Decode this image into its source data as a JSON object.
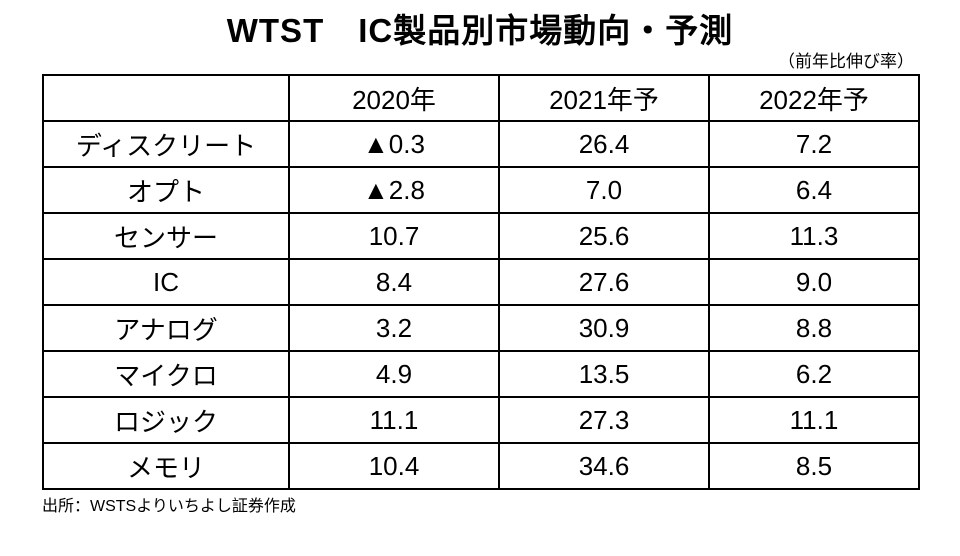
{
  "title": "WTST　IC製品別市場動向・予測",
  "subtitle": "（前年比伸び率）",
  "source": "出所：WSTSよりいちよし証券作成",
  "chart_data": {
    "type": "table",
    "title": "WTST　IC製品別市場動向・予測",
    "unit_note": "（前年比伸び率）",
    "negative_marker": "▲",
    "columns": [
      "",
      "2020年",
      "2021年予",
      "2022年予"
    ],
    "rows": [
      {
        "label": "ディスクリート",
        "values": [
          "▲0.3",
          "26.4",
          "7.2"
        ]
      },
      {
        "label": "オプト",
        "values": [
          "▲2.8",
          "7.0",
          "6.4"
        ]
      },
      {
        "label": "センサー",
        "values": [
          "10.7",
          "25.6",
          "11.3"
        ]
      },
      {
        "label": "IC",
        "values": [
          "8.4",
          "27.6",
          "9.0"
        ]
      },
      {
        "label": "アナログ",
        "values": [
          "3.2",
          "30.9",
          "8.8"
        ]
      },
      {
        "label": "マイクロ",
        "values": [
          "4.9",
          "13.5",
          "6.2"
        ]
      },
      {
        "label": "ロジック",
        "values": [
          "11.1",
          "27.3",
          "11.1"
        ]
      },
      {
        "label": "メモリ",
        "values": [
          "10.4",
          "34.6",
          "8.5"
        ]
      }
    ],
    "numeric_rows": [
      {
        "label": "ディスクリート",
        "values": [
          -0.3,
          26.4,
          7.2
        ]
      },
      {
        "label": "オプト",
        "values": [
          -2.8,
          7.0,
          6.4
        ]
      },
      {
        "label": "センサー",
        "values": [
          10.7,
          25.6,
          11.3
        ]
      },
      {
        "label": "IC",
        "values": [
          8.4,
          27.6,
          9.0
        ]
      },
      {
        "label": "アナログ",
        "values": [
          3.2,
          30.9,
          8.8
        ]
      },
      {
        "label": "マイクロ",
        "values": [
          4.9,
          13.5,
          6.2
        ]
      },
      {
        "label": "ロジック",
        "values": [
          11.1,
          27.3,
          11.1
        ]
      },
      {
        "label": "メモリ",
        "values": [
          10.4,
          34.6,
          8.5
        ]
      }
    ],
    "colors": {
      "border": "#000000",
      "text": "#000000",
      "background": "#ffffff"
    }
  }
}
